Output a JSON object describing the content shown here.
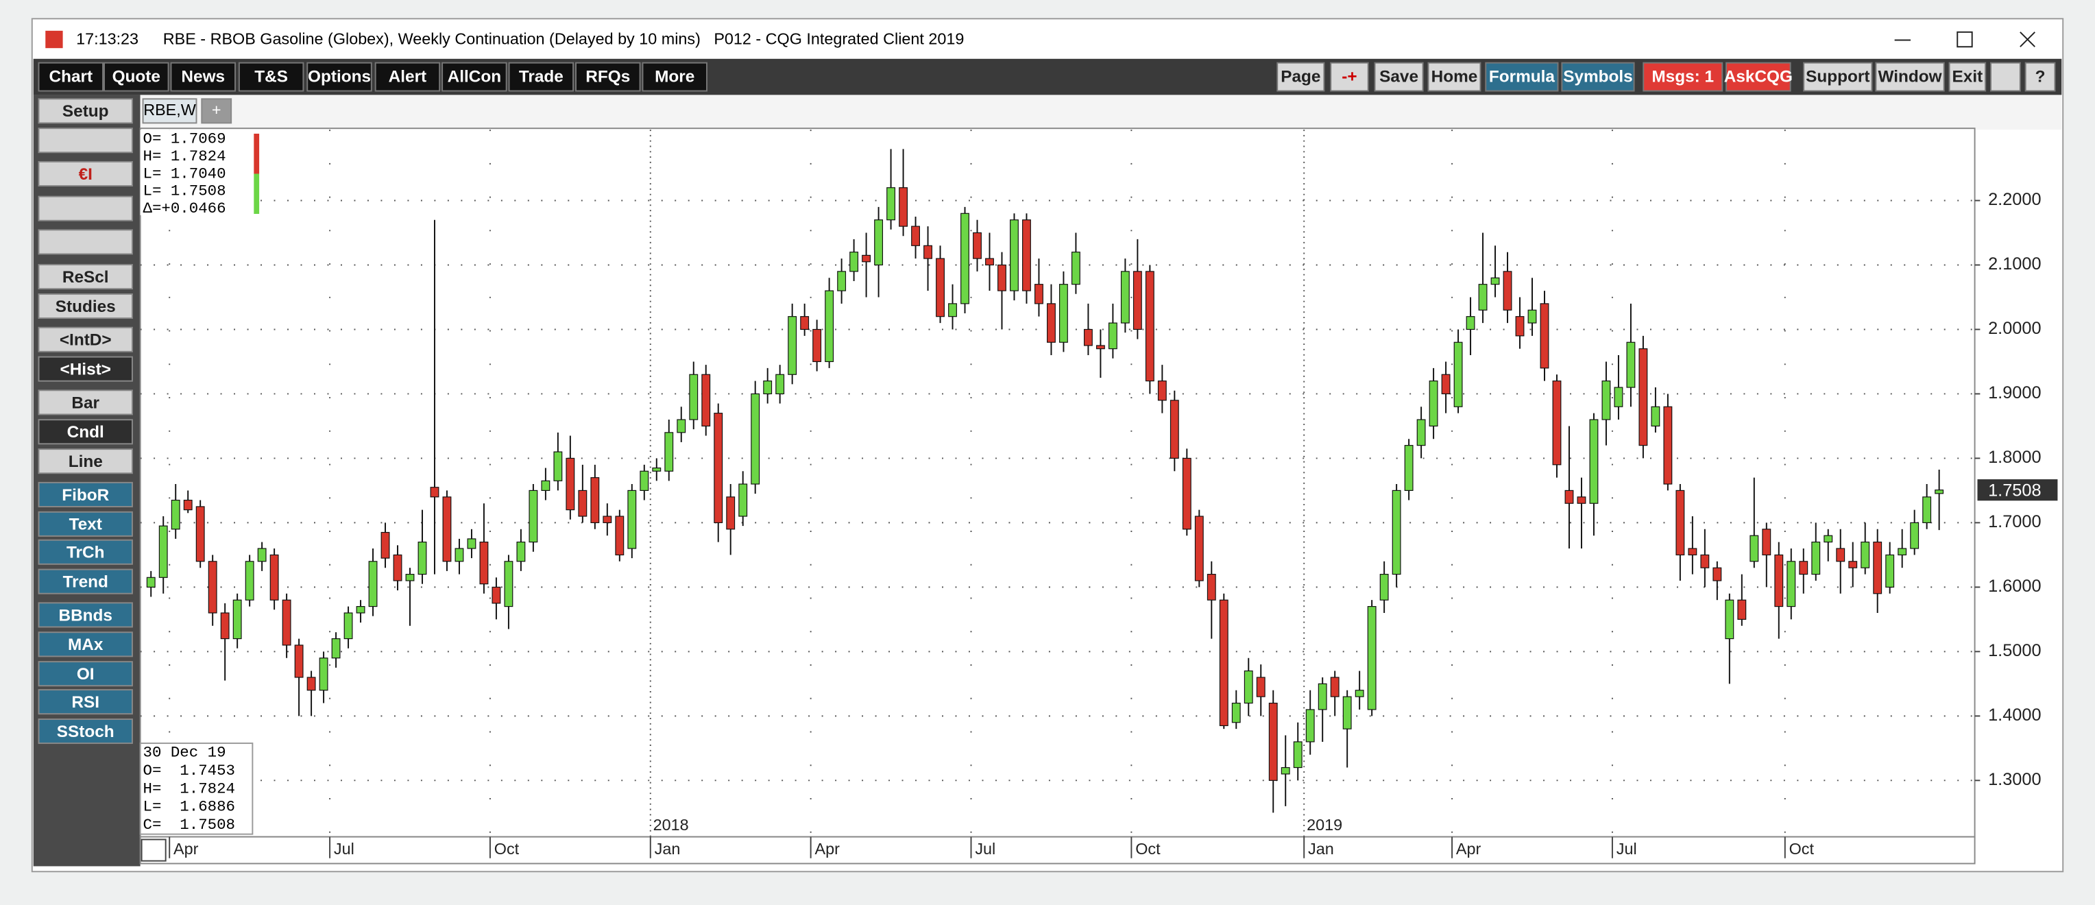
{
  "window": {
    "time": "17:13:23",
    "title": "RBE - RBOB Gasoline (Globex), Weekly Continuation (Delayed by 10 mins)   P012 - CQG Integrated Client 2019"
  },
  "toolbar_left": [
    "Chart",
    "Quote",
    "News",
    "T&S",
    "Options",
    "Alert",
    "AllCon",
    "Trade",
    "RFQs",
    "More"
  ],
  "toolbar_right": [
    "Page",
    "-+",
    "Save",
    "Home",
    "Formula",
    "Symbols",
    "Msgs: 1",
    "AskCQG",
    "Support",
    "Window",
    "Exit",
    "?"
  ],
  "sidebar": [
    "Setup",
    "€I",
    "ReScl",
    "Studies",
    "<IntD>",
    "<Hist>",
    "Bar",
    "Cndl",
    "Line",
    "FiboR",
    "Text",
    "TrCh",
    "Trend",
    "BBnds",
    "MAx",
    "OI",
    "RSI",
    "SStoch"
  ],
  "tabs": [
    "RBE,W",
    "+"
  ],
  "chart_data": {
    "type": "candlestick",
    "info_top": [
      "O= 1.7069",
      "H= 1.7824",
      "L= 1.7040",
      "L= 1.7508",
      "Δ=+0.0466"
    ],
    "info_bottom": [
      "30 Dec 19",
      "O=  1.7453",
      "H=  1.7824",
      "L=  1.6886",
      "C=  1.7508"
    ],
    "last_price_label": "1.7508",
    "up_color": "#6cd646",
    "down_color": "#d8372c",
    "categories": [
      null,
      null,
      "Apr",
      null,
      null,
      null,
      null,
      null,
      null,
      null,
      null,
      null,
      null,
      null,
      null,
      "Jul",
      null,
      null,
      null,
      null,
      null,
      null,
      null,
      null,
      null,
      null,
      null,
      null,
      "Oct",
      null,
      null,
      null,
      null,
      null,
      null,
      null,
      null,
      null,
      null,
      null,
      null,
      "Jan",
      null,
      null,
      null,
      null,
      null,
      null,
      null,
      null,
      null,
      null,
      null,
      null,
      "Apr",
      null,
      null,
      null,
      null,
      null,
      null,
      null,
      null,
      null,
      null,
      null,
      null,
      "Jul",
      null,
      null,
      null,
      null,
      null,
      null,
      null,
      null,
      null,
      null,
      null,
      null,
      "Oct",
      null,
      null,
      null,
      null,
      null,
      null,
      null,
      null,
      null,
      null,
      null,
      null,
      null,
      "Jan",
      null,
      null,
      null,
      null,
      null,
      null,
      null,
      null,
      null,
      null,
      null,
      "Apr",
      null,
      null,
      null,
      null,
      null,
      null,
      null,
      null,
      null,
      null,
      null,
      null,
      "Jul",
      null,
      null,
      null,
      null,
      null,
      null,
      null,
      null,
      null,
      null,
      null,
      null,
      null,
      "Oct",
      null,
      null,
      null,
      null,
      null,
      null,
      null,
      null,
      null,
      null,
      null,
      null
    ],
    "year_labels": [
      "2018",
      "2019"
    ],
    "open": [
      1.6,
      1.615,
      1.69,
      1.735,
      1.725,
      1.64,
      1.56,
      1.52,
      1.58,
      1.64,
      1.65,
      1.58,
      1.51,
      1.46,
      1.44,
      1.49,
      1.52,
      1.56,
      1.57,
      1.685,
      1.65,
      1.61,
      1.62,
      1.755,
      1.74,
      1.64,
      1.66,
      1.67,
      1.6,
      1.57,
      1.64,
      1.67,
      1.75,
      1.765,
      1.8,
      1.75,
      1.77,
      1.71,
      1.71,
      1.66,
      1.75,
      1.78,
      1.78,
      1.84,
      1.86,
      1.93,
      1.87,
      1.74,
      1.71,
      1.76,
      1.9,
      1.9,
      1.93,
      2.02,
      2.0,
      1.95,
      2.06,
      2.09,
      2.115,
      2.1,
      2.17,
      2.22,
      2.16,
      2.13,
      2.11,
      2.02,
      2.04,
      2.15,
      2.11,
      2.1,
      2.06,
      2.17,
      2.07,
      2.04,
      1.98,
      2.07,
      2.0,
      1.975,
      1.97,
      2.01,
      2.09,
      2.09,
      1.92,
      1.89,
      1.8,
      1.71,
      1.62,
      1.58,
      1.39,
      1.42,
      1.46,
      1.42,
      1.31,
      1.32,
      1.36,
      1.41,
      1.46,
      1.38,
      1.43,
      1.41,
      1.58,
      1.62,
      1.75,
      1.82,
      1.85,
      1.93,
      1.88,
      2.0,
      2.03,
      2.07,
      2.09,
      2.02,
      2.01,
      2.04,
      1.92,
      1.75,
      1.74,
      1.73,
      1.86,
      1.88,
      1.91,
      1.97,
      1.85,
      1.88,
      1.75,
      1.66,
      1.65,
      1.63,
      1.52,
      1.58,
      1.64,
      1.69,
      1.65,
      1.57,
      1.64,
      1.62,
      1.67,
      1.66,
      1.64,
      1.63,
      1.67,
      1.6,
      1.65,
      1.66,
      1.7,
      1.7453
    ],
    "high": [
      1.625,
      1.71,
      1.76,
      1.75,
      1.735,
      1.65,
      1.575,
      1.59,
      1.65,
      1.67,
      1.66,
      1.59,
      1.52,
      1.47,
      1.5,
      1.53,
      1.57,
      1.58,
      1.66,
      1.7,
      1.665,
      1.63,
      1.72,
      2.17,
      1.75,
      1.675,
      1.69,
      1.73,
      1.615,
      1.65,
      1.69,
      1.76,
      1.785,
      1.84,
      1.835,
      1.79,
      1.79,
      1.73,
      1.72,
      1.76,
      1.79,
      1.8,
      1.86,
      1.88,
      1.95,
      1.945,
      1.885,
      1.76,
      1.78,
      1.92,
      1.94,
      1.945,
      2.04,
      2.04,
      2.015,
      2.08,
      2.11,
      2.14,
      2.15,
      2.19,
      2.28,
      2.28,
      2.175,
      2.16,
      2.13,
      2.07,
      2.19,
      2.17,
      2.15,
      2.12,
      2.18,
      2.18,
      2.11,
      2.07,
      2.09,
      2.15,
      2.04,
      2.0,
      2.04,
      2.11,
      2.14,
      2.1,
      1.945,
      1.905,
      1.815,
      1.72,
      1.64,
      1.59,
      1.44,
      1.49,
      1.48,
      1.44,
      1.37,
      1.39,
      1.44,
      1.46,
      1.47,
      1.44,
      1.47,
      1.58,
      1.64,
      1.76,
      1.83,
      1.88,
      1.94,
      1.95,
      2.0,
      2.05,
      2.15,
      2.13,
      2.12,
      2.05,
      2.08,
      2.06,
      1.93,
      1.85,
      1.77,
      1.87,
      1.95,
      1.96,
      2.04,
      1.99,
      1.91,
      1.9,
      1.76,
      1.71,
      1.69,
      1.64,
      1.59,
      1.62,
      1.77,
      1.7,
      1.67,
      1.66,
      1.66,
      1.7,
      1.69,
      1.69,
      1.67,
      1.7,
      1.69,
      1.67,
      1.69,
      1.72,
      1.76,
      1.7824
    ],
    "low": [
      1.585,
      1.59,
      1.675,
      1.715,
      1.63,
      1.54,
      1.455,
      1.505,
      1.57,
      1.625,
      1.565,
      1.49,
      1.4,
      1.4,
      1.42,
      1.475,
      1.505,
      1.545,
      1.555,
      1.63,
      1.595,
      1.54,
      1.605,
      1.62,
      1.625,
      1.62,
      1.645,
      1.59,
      1.55,
      1.535,
      1.625,
      1.655,
      1.735,
      1.75,
      1.705,
      1.7,
      1.69,
      1.68,
      1.64,
      1.645,
      1.735,
      1.765,
      1.765,
      1.825,
      1.845,
      1.835,
      1.67,
      1.65,
      1.695,
      1.745,
      1.885,
      1.885,
      1.915,
      1.99,
      1.935,
      1.94,
      2.04,
      2.075,
      2.05,
      2.05,
      2.155,
      2.145,
      2.11,
      2.06,
      2.01,
      2.0,
      2.025,
      2.09,
      2.06,
      2.0,
      2.045,
      2.04,
      2.02,
      1.96,
      1.965,
      2.055,
      1.96,
      1.925,
      1.955,
      1.995,
      1.985,
      1.9,
      1.87,
      1.78,
      1.68,
      1.6,
      1.52,
      1.38,
      1.38,
      1.4,
      1.4,
      1.25,
      1.26,
      1.3,
      1.34,
      1.36,
      1.4,
      1.32,
      1.41,
      1.4,
      1.56,
      1.6,
      1.735,
      1.8,
      1.83,
      1.87,
      1.87,
      1.96,
      2.01,
      2.05,
      2.01,
      1.97,
      1.99,
      1.92,
      1.77,
      1.66,
      1.66,
      1.68,
      1.82,
      1.86,
      1.88,
      1.8,
      1.84,
      1.75,
      1.61,
      1.62,
      1.6,
      1.58,
      1.45,
      1.54,
      1.63,
      1.6,
      1.52,
      1.55,
      1.59,
      1.61,
      1.64,
      1.59,
      1.6,
      1.62,
      1.56,
      1.59,
      1.63,
      1.65,
      1.69,
      1.6886
    ],
    "close": [
      1.615,
      1.695,
      1.735,
      1.72,
      1.64,
      1.56,
      1.52,
      1.58,
      1.64,
      1.66,
      1.58,
      1.51,
      1.46,
      1.44,
      1.49,
      1.52,
      1.56,
      1.57,
      1.64,
      1.645,
      1.61,
      1.62,
      1.67,
      1.74,
      1.64,
      1.66,
      1.675,
      1.605,
      1.575,
      1.64,
      1.67,
      1.75,
      1.765,
      1.81,
      1.72,
      1.71,
      1.7,
      1.7,
      1.65,
      1.75,
      1.78,
      1.785,
      1.84,
      1.86,
      1.93,
      1.85,
      1.7,
      1.69,
      1.76,
      1.9,
      1.92,
      1.93,
      2.02,
      2.0,
      1.95,
      2.06,
      2.09,
      2.12,
      2.105,
      2.17,
      2.22,
      2.16,
      2.13,
      2.11,
      2.02,
      2.04,
      2.18,
      2.11,
      2.1,
      2.06,
      2.17,
      2.06,
      2.04,
      1.98,
      2.07,
      2.12,
      1.975,
      1.97,
      2.01,
      2.09,
      2.0,
      1.92,
      1.89,
      1.8,
      1.69,
      1.61,
      1.58,
      1.385,
      1.42,
      1.47,
      1.43,
      1.3,
      1.32,
      1.36,
      1.41,
      1.45,
      1.43,
      1.43,
      1.44,
      1.57,
      1.62,
      1.75,
      1.82,
      1.86,
      1.92,
      1.9,
      1.98,
      2.02,
      2.07,
      2.08,
      2.03,
      1.99,
      2.03,
      1.94,
      1.79,
      1.73,
      1.73,
      1.86,
      1.92,
      1.91,
      1.98,
      1.82,
      1.88,
      1.76,
      1.65,
      1.65,
      1.63,
      1.61,
      1.58,
      1.55,
      1.68,
      1.65,
      1.57,
      1.64,
      1.62,
      1.67,
      1.68,
      1.64,
      1.63,
      1.67,
      1.59,
      1.65,
      1.66,
      1.7,
      1.74,
      1.7508
    ],
    "ylim": [
      1.2125,
      2.31
    ],
    "yticks": [
      {
        "value": 1.3,
        "label": "1.3000"
      },
      {
        "value": 1.4,
        "label": "1.4000"
      },
      {
        "value": 1.5,
        "label": "1.5000"
      },
      {
        "value": 1.6,
        "label": "1.6000"
      },
      {
        "value": 1.7,
        "label": "1.7000"
      },
      {
        "value": 1.8,
        "label": "1.8000"
      },
      {
        "value": 1.9,
        "label": "1.9000"
      },
      {
        "value": 2.0,
        "label": "2.0000"
      },
      {
        "value": 2.1,
        "label": "2.1000"
      },
      {
        "value": 2.2,
        "label": "2.2000"
      }
    ],
    "grid": true
  }
}
